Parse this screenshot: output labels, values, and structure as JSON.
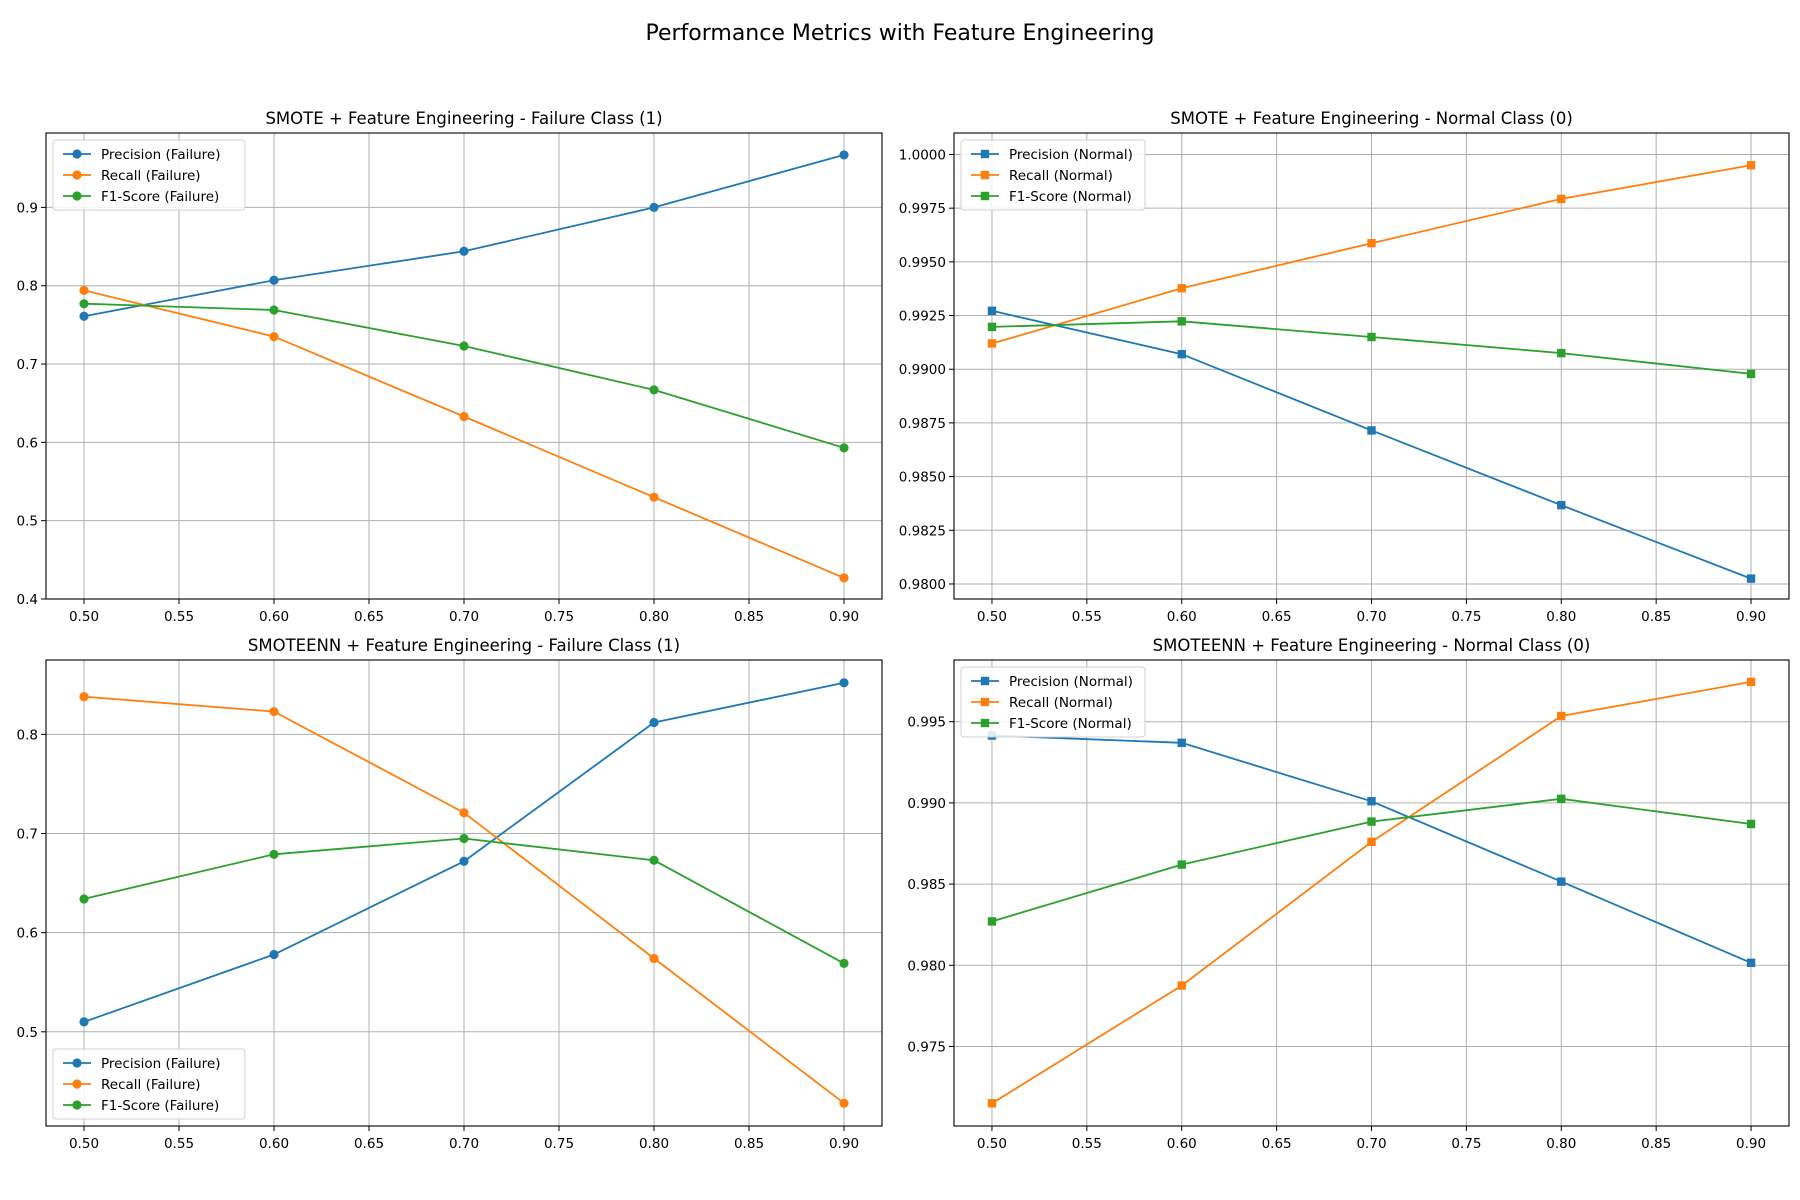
{
  "figure_title": "Performance Metrics with Feature Engineering",
  "chart_data": [
    {
      "type": "line",
      "title": "SMOTE + Feature Engineering - Failure Class (1)",
      "xlabel": "",
      "ylabel": "",
      "marker": "circle",
      "x": [
        0.5,
        0.6,
        0.7,
        0.8,
        0.9
      ],
      "xlim": [
        0.48,
        0.92
      ],
      "ylim": [
        0.4,
        0.995
      ],
      "xticks": [
        0.5,
        0.55,
        0.6,
        0.65,
        0.7,
        0.75,
        0.8,
        0.85,
        0.9
      ],
      "xtick_labels": [
        "0.50",
        "0.55",
        "0.60",
        "0.65",
        "0.70",
        "0.75",
        "0.80",
        "0.85",
        "0.90"
      ],
      "yticks": [
        0.4,
        0.5,
        0.6,
        0.7,
        0.8,
        0.9
      ],
      "ytick_labels": [
        "0.4",
        "0.5",
        "0.6",
        "0.7",
        "0.8",
        "0.9"
      ],
      "grid": true,
      "legend_position": "upper left",
      "series": [
        {
          "name": "Precision (Failure)",
          "color": "#1f77b4",
          "values": [
            0.761,
            0.807,
            0.844,
            0.9,
            0.967
          ]
        },
        {
          "name": "Recall (Failure)",
          "color": "#ff7f0e",
          "values": [
            0.794,
            0.735,
            0.633,
            0.53,
            0.427
          ]
        },
        {
          "name": "F1-Score (Failure)",
          "color": "#2ca02c",
          "values": [
            0.777,
            0.769,
            0.723,
            0.667,
            0.593
          ]
        }
      ]
    },
    {
      "type": "line",
      "title": "SMOTE + Feature Engineering - Normal Class (0)",
      "xlabel": "",
      "ylabel": "",
      "marker": "square",
      "x": [
        0.5,
        0.6,
        0.7,
        0.8,
        0.9
      ],
      "xlim": [
        0.48,
        0.92
      ],
      "ylim": [
        0.9793,
        1.001
      ],
      "xticks": [
        0.5,
        0.55,
        0.6,
        0.65,
        0.7,
        0.75,
        0.8,
        0.85,
        0.9
      ],
      "xtick_labels": [
        "0.50",
        "0.55",
        "0.60",
        "0.65",
        "0.70",
        "0.75",
        "0.80",
        "0.85",
        "0.90"
      ],
      "yticks": [
        0.98,
        0.9825,
        0.985,
        0.9875,
        0.99,
        0.9925,
        0.995,
        0.9975,
        1.0
      ],
      "ytick_labels": [
        "0.9800",
        "0.9825",
        "0.9850",
        "0.9875",
        "0.9900",
        "0.9925",
        "0.9950",
        "0.9975",
        "1.0000"
      ],
      "grid": true,
      "legend_position": "upper left",
      "series": [
        {
          "name": "Precision (Normal)",
          "color": "#1f77b4",
          "values": [
            0.99272,
            0.9907,
            0.98715,
            0.98367,
            0.98025
          ]
        },
        {
          "name": "Recall (Normal)",
          "color": "#ff7f0e",
          "values": [
            0.9912,
            0.99377,
            0.99587,
            0.99793,
            0.9995
          ]
        },
        {
          "name": "F1-Score (Normal)",
          "color": "#2ca02c",
          "values": [
            0.99197,
            0.99223,
            0.9915,
            0.99075,
            0.98978
          ]
        }
      ]
    },
    {
      "type": "line",
      "title": "SMOTEENN + Feature Engineering - Failure Class (1)",
      "xlabel": "",
      "ylabel": "",
      "marker": "circle",
      "x": [
        0.5,
        0.6,
        0.7,
        0.8,
        0.9
      ],
      "xlim": [
        0.48,
        0.92
      ],
      "ylim": [
        0.405,
        0.875
      ],
      "xticks": [
        0.5,
        0.55,
        0.6,
        0.65,
        0.7,
        0.75,
        0.8,
        0.85,
        0.9
      ],
      "xtick_labels": [
        "0.50",
        "0.55",
        "0.60",
        "0.65",
        "0.70",
        "0.75",
        "0.80",
        "0.85",
        "0.90"
      ],
      "yticks": [
        0.5,
        0.6,
        0.7,
        0.8
      ],
      "ytick_labels": [
        "0.5",
        "0.6",
        "0.7",
        "0.8"
      ],
      "grid": true,
      "legend_position": "lower left",
      "series": [
        {
          "name": "Precision (Failure)",
          "color": "#1f77b4",
          "values": [
            0.51,
            0.578,
            0.672,
            0.812,
            0.852
          ]
        },
        {
          "name": "Recall (Failure)",
          "color": "#ff7f0e",
          "values": [
            0.838,
            0.823,
            0.721,
            0.574,
            0.428
          ]
        },
        {
          "name": "F1-Score (Failure)",
          "color": "#2ca02c",
          "values": [
            0.634,
            0.679,
            0.695,
            0.673,
            0.569
          ]
        }
      ]
    },
    {
      "type": "line",
      "title": "SMOTEENN + Feature Engineering - Normal Class (0)",
      "xlabel": "",
      "ylabel": "",
      "marker": "square",
      "x": [
        0.5,
        0.6,
        0.7,
        0.8,
        0.9
      ],
      "xlim": [
        0.48,
        0.92
      ],
      "ylim": [
        0.9701,
        0.9988
      ],
      "xticks": [
        0.5,
        0.55,
        0.6,
        0.65,
        0.7,
        0.75,
        0.8,
        0.85,
        0.9
      ],
      "xtick_labels": [
        "0.50",
        "0.55",
        "0.60",
        "0.65",
        "0.70",
        "0.75",
        "0.80",
        "0.85",
        "0.90"
      ],
      "yticks": [
        0.975,
        0.98,
        0.985,
        0.99,
        0.995
      ],
      "ytick_labels": [
        "0.975",
        "0.980",
        "0.985",
        "0.990",
        "0.995"
      ],
      "grid": true,
      "legend_position": "upper left",
      "series": [
        {
          "name": "Precision (Normal)",
          "color": "#1f77b4",
          "values": [
            0.99415,
            0.9937,
            0.9901,
            0.98515,
            0.98015
          ]
        },
        {
          "name": "Recall (Normal)",
          "color": "#ff7f0e",
          "values": [
            0.9715,
            0.97875,
            0.9876,
            0.99535,
            0.99745
          ]
        },
        {
          "name": "F1-Score (Normal)",
          "color": "#2ca02c",
          "values": [
            0.9827,
            0.9862,
            0.98885,
            0.99025,
            0.9887
          ]
        }
      ]
    }
  ]
}
